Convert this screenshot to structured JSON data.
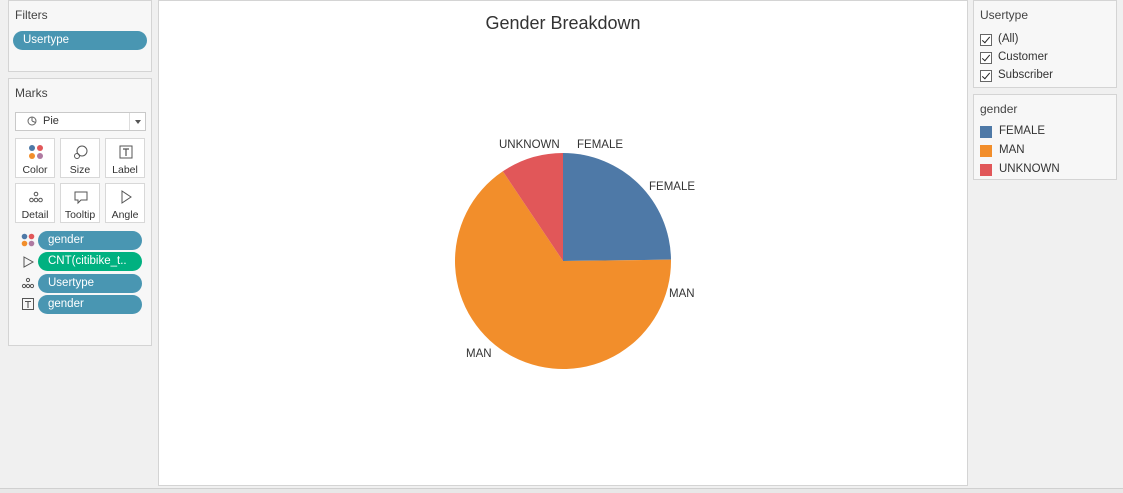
{
  "filters": {
    "title": "Filters",
    "items": [
      "Usertype"
    ]
  },
  "marks": {
    "title": "Marks",
    "mark_type": "Pie",
    "buttons": [
      "Color",
      "Size",
      "Label",
      "Detail",
      "Tooltip",
      "Angle"
    ],
    "fields": [
      {
        "icon": "color-dots-icon",
        "label": "gender",
        "color": "#4996b2"
      },
      {
        "icon": "angle-icon",
        "label": "CNT(citibike_t..",
        "color": "#00b180"
      },
      {
        "icon": "detail-icon",
        "label": "Usertype",
        "color": "#4996b2"
      },
      {
        "icon": "label-icon",
        "label": "gender",
        "color": "#4996b2"
      }
    ]
  },
  "usertype_filter": {
    "title": "Usertype",
    "options": [
      {
        "label": "(All)",
        "checked": true
      },
      {
        "label": "Customer",
        "checked": true
      },
      {
        "label": "Subscriber",
        "checked": true
      }
    ]
  },
  "gender_legend": {
    "title": "gender",
    "items": [
      {
        "label": "FEMALE",
        "color": "#4e79a7"
      },
      {
        "label": "MAN",
        "color": "#f28e2b"
      },
      {
        "label": "UNKNOWN",
        "color": "#e15759"
      }
    ]
  },
  "chart_data": {
    "type": "pie",
    "title": "Gender Breakdown",
    "slices": [
      {
        "label": "FEMALE",
        "value": 24.8,
        "color": "#4e79a7"
      },
      {
        "label": "MAN",
        "value": 65.8,
        "color": "#f28e2b"
      },
      {
        "label": "UNKNOWN",
        "value": 9.4,
        "color": "#e15759"
      }
    ],
    "slice_labels": [
      "UNKNOWN",
      "FEMALE",
      "FEMALE",
      "MAN",
      "MAN"
    ]
  }
}
